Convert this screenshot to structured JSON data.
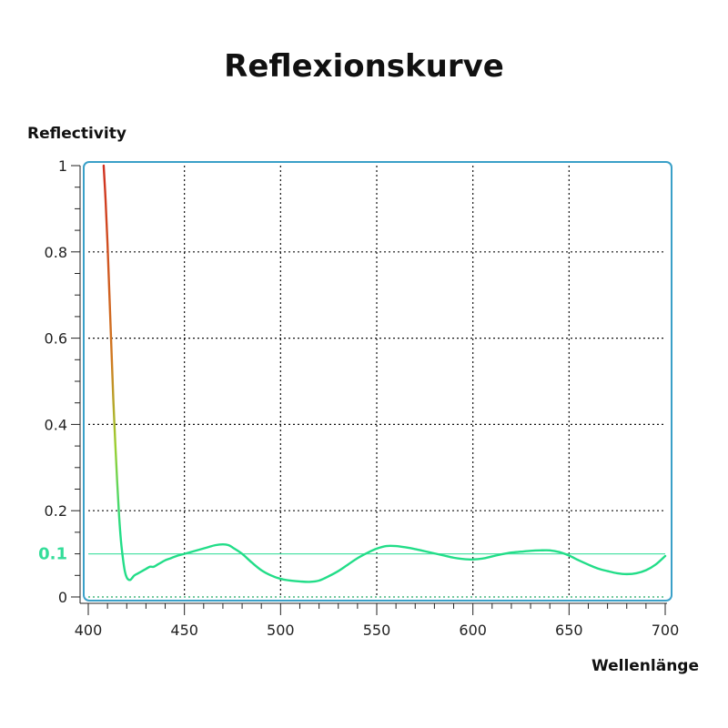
{
  "chart_data": {
    "type": "line",
    "title": "Reflexionskurve",
    "xlabel": "Wellenlänge",
    "ylabel": "Reflectivity",
    "xlim": [
      400,
      700
    ],
    "ylim": [
      0,
      1
    ],
    "xticks": [
      "400",
      "450",
      "500",
      "550",
      "600",
      "650",
      "700"
    ],
    "yticks": [
      "0",
      "0.2",
      "0.4",
      "0.6",
      "0.8",
      "1"
    ],
    "grid": true,
    "reference_line": {
      "y": 0.1,
      "label": "0.1",
      "color": "#33dd99"
    },
    "colors": {
      "frame": "#3aa0c8",
      "curve_low": "#22dd88",
      "curve_high": "#d03020",
      "grid": "#111111"
    },
    "series": [
      {
        "x": [
          408,
          409,
          410,
          411,
          412,
          413,
          414,
          415,
          416,
          417,
          418,
          419,
          420,
          421,
          422,
          423,
          424,
          426,
          428,
          430,
          432,
          434,
          436,
          438,
          440,
          443,
          446,
          450,
          454,
          458,
          462,
          466,
          470,
          473,
          476,
          480,
          485,
          490,
          495,
          500,
          505,
          510,
          515,
          520,
          525,
          530,
          535,
          540,
          545,
          550,
          555,
          560,
          565,
          570,
          575,
          580,
          585,
          590,
          595,
          600,
          605,
          610,
          615,
          620,
          625,
          630,
          635,
          640,
          645,
          650,
          655,
          660,
          665,
          670,
          675,
          680,
          685,
          690,
          695,
          700
        ],
        "y": [
          1.0,
          0.92,
          0.82,
          0.7,
          0.58,
          0.46,
          0.36,
          0.27,
          0.19,
          0.13,
          0.09,
          0.06,
          0.045,
          0.04,
          0.04,
          0.045,
          0.05,
          0.055,
          0.06,
          0.065,
          0.07,
          0.07,
          0.075,
          0.08,
          0.085,
          0.09,
          0.095,
          0.1,
          0.105,
          0.11,
          0.115,
          0.12,
          0.122,
          0.12,
          0.112,
          0.1,
          0.08,
          0.062,
          0.05,
          0.042,
          0.038,
          0.036,
          0.035,
          0.038,
          0.048,
          0.06,
          0.075,
          0.09,
          0.102,
          0.112,
          0.118,
          0.118,
          0.115,
          0.111,
          0.106,
          0.101,
          0.096,
          0.091,
          0.088,
          0.087,
          0.089,
          0.094,
          0.099,
          0.103,
          0.105,
          0.107,
          0.108,
          0.108,
          0.104,
          0.096,
          0.085,
          0.075,
          0.066,
          0.06,
          0.055,
          0.053,
          0.055,
          0.062,
          0.075,
          0.095
        ]
      }
    ]
  }
}
